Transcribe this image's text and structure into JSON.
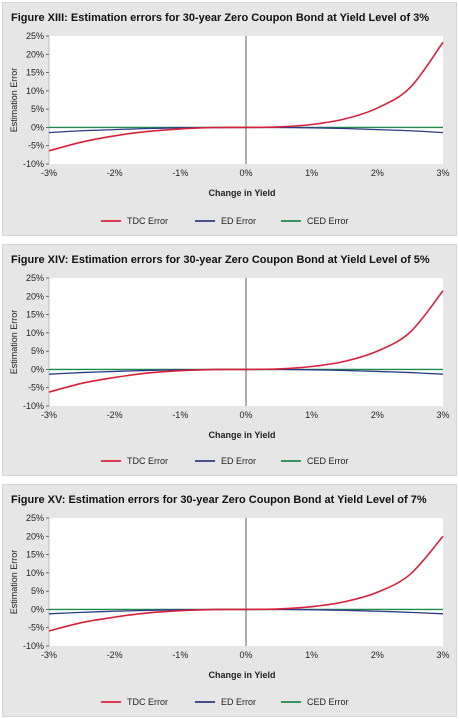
{
  "chart_data": [
    {
      "type": "line",
      "title": "Figure XIII: Estimation errors for 30-year Zero Coupon Bond at Yield Level of 3%",
      "xlabel": "Change in Yield",
      "ylabel": "Estimation Error",
      "x_ticks": [
        "-3%",
        "-2%",
        "-1%",
        "0%",
        "1%",
        "2%",
        "3%"
      ],
      "y_ticks": [
        "25%",
        "20%",
        "15%",
        "10%",
        "5%",
        "0%",
        "-5%",
        "-10%"
      ],
      "xlim": [
        -3,
        3
      ],
      "ylim": [
        -10,
        25
      ],
      "grid": false,
      "legend_position": "bottom",
      "x": [
        -3,
        -2.5,
        -2,
        -1.5,
        -1,
        -0.5,
        0,
        0.5,
        1,
        1.5,
        2,
        2.5,
        3
      ],
      "series": [
        {
          "name": "TDC Error",
          "color": "#d8203a",
          "values": [
            -6.4,
            -4.0,
            -2.3,
            -1.1,
            -0.4,
            -0.05,
            0,
            0.15,
            0.8,
            2.3,
            5.3,
            10.9,
            23.3
          ]
        },
        {
          "name": "ED Error",
          "color": "#2c3b84",
          "values": [
            -1.4,
            -0.9,
            -0.6,
            -0.3,
            -0.1,
            -0.02,
            0,
            -0.02,
            -0.1,
            -0.3,
            -0.6,
            -0.9,
            -1.4
          ]
        },
        {
          "name": "CED Error",
          "color": "#1e8a4a",
          "values": [
            0,
            0,
            0,
            0,
            0,
            0,
            0,
            0,
            0,
            0,
            0,
            0,
            0
          ]
        }
      ]
    },
    {
      "type": "line",
      "title": "Figure XIV: Estimation errors for 30-year Zero Coupon Bond at Yield Level of 5%",
      "xlabel": "Change in Yield",
      "ylabel": "Estimation Error",
      "x_ticks": [
        "-3%",
        "-2%",
        "-1%",
        "0%",
        "1%",
        "2%",
        "3%"
      ],
      "y_ticks": [
        "25%",
        "20%",
        "15%",
        "10%",
        "5%",
        "0%",
        "-5%",
        "-10%"
      ],
      "xlim": [
        -3,
        3
      ],
      "ylim": [
        -10,
        25
      ],
      "grid": false,
      "legend_position": "bottom",
      "x": [
        -3,
        -2.5,
        -2,
        -1.5,
        -1,
        -0.5,
        0,
        0.5,
        1,
        1.5,
        2,
        2.5,
        3
      ],
      "series": [
        {
          "name": "TDC Error",
          "color": "#d8203a",
          "values": [
            -6.2,
            -3.8,
            -2.2,
            -1.0,
            -0.35,
            -0.04,
            0,
            0.15,
            0.8,
            2.2,
            5.0,
            10.2,
            21.5
          ]
        },
        {
          "name": "ED Error",
          "color": "#2c3b84",
          "values": [
            -1.3,
            -0.85,
            -0.55,
            -0.28,
            -0.1,
            -0.02,
            0,
            -0.02,
            -0.1,
            -0.28,
            -0.55,
            -0.85,
            -1.3
          ]
        },
        {
          "name": "CED Error",
          "color": "#1e8a4a",
          "values": [
            0,
            0,
            0,
            0,
            0,
            0,
            0,
            0,
            0,
            0,
            0,
            0,
            0
          ]
        }
      ]
    },
    {
      "type": "line",
      "title": "Figure XV: Estimation errors for 30-year Zero Coupon Bond at Yield Level of 7%",
      "xlabel": "Change in Yield",
      "ylabel": "Estimation Error",
      "x_ticks": [
        "-3%",
        "-2%",
        "-1%",
        "0%",
        "1%",
        "2%",
        "3%"
      ],
      "y_ticks": [
        "25%",
        "20%",
        "15%",
        "10%",
        "5%",
        "0%",
        "-5%",
        "-10%"
      ],
      "xlim": [
        -3,
        3
      ],
      "ylim": [
        -10,
        25
      ],
      "grid": false,
      "legend_position": "bottom",
      "x": [
        -3,
        -2.5,
        -2,
        -1.5,
        -1,
        -0.5,
        0,
        0.5,
        1,
        1.5,
        2,
        2.5,
        3
      ],
      "series": [
        {
          "name": "TDC Error",
          "color": "#d8203a",
          "values": [
            -5.9,
            -3.6,
            -2.1,
            -0.95,
            -0.33,
            -0.04,
            0,
            0.14,
            0.75,
            2.1,
            4.7,
            9.6,
            20.0
          ]
        },
        {
          "name": "ED Error",
          "color": "#2c3b84",
          "values": [
            -1.2,
            -0.8,
            -0.5,
            -0.26,
            -0.09,
            -0.02,
            0,
            -0.02,
            -0.09,
            -0.26,
            -0.5,
            -0.8,
            -1.2
          ]
        },
        {
          "name": "CED Error",
          "color": "#1e8a4a",
          "values": [
            0,
            0,
            0,
            0,
            0,
            0,
            0,
            0,
            0,
            0,
            0,
            0,
            0
          ]
        }
      ]
    }
  ]
}
